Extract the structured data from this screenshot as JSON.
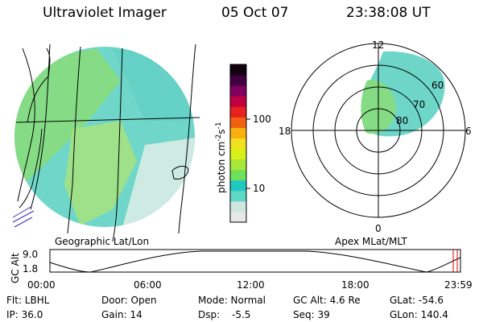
{
  "header": {
    "title": "Ultraviolet Imager",
    "date": "05 Oct 07",
    "time": "23:38:08 UT"
  },
  "colorbar": {
    "unit_label": "photon cm",
    "unit_exp1": "-2",
    "unit_s": "s",
    "unit_exp2": "-1",
    "tick_100": "100",
    "tick_10": "10",
    "colors": [
      "#e8e8e8",
      "#cfe5e0",
      "#5fd8c8",
      "#1fc8c0",
      "#6ee05a",
      "#a8e838",
      "#d8f018",
      "#f0e020",
      "#f8b010",
      "#f06010",
      "#e82020",
      "#c00040",
      "#800060",
      "#400040",
      "#100010"
    ]
  },
  "left_map": {
    "caption": "Geographic Lat/Lon",
    "fill_colors": [
      "#78d878",
      "#5fd2c4",
      "#9ee070",
      "#4cc8c0",
      "#c8e8e0"
    ]
  },
  "polar_map": {
    "caption": "Apex MLat/MLT",
    "mlt_labels": [
      "12",
      "18",
      "6",
      "0"
    ],
    "lat_labels": [
      "60",
      "70",
      "80"
    ]
  },
  "altitude_plot": {
    "ylabel": "GC Alt",
    "yticks": [
      "9.0",
      "1.8"
    ],
    "xticks": [
      "00:00",
      "06:00",
      "12:00",
      "18:00",
      "23:59"
    ],
    "current_marker_color": "#e00000"
  },
  "footer": {
    "flt": "Flt: LBHL",
    "door": "Door: Open",
    "mode": "Mode: Normal",
    "gc_alt": "GC Alt: 4.6 Re",
    "glat": "GLat: -54.6",
    "ip": "IP: 36.0",
    "gain": "Gain: 14",
    "dsp_label": "Dsp:",
    "dsp_value": "-5.5",
    "seq": "Seq: 39",
    "glon": "GLon: 140.4"
  }
}
